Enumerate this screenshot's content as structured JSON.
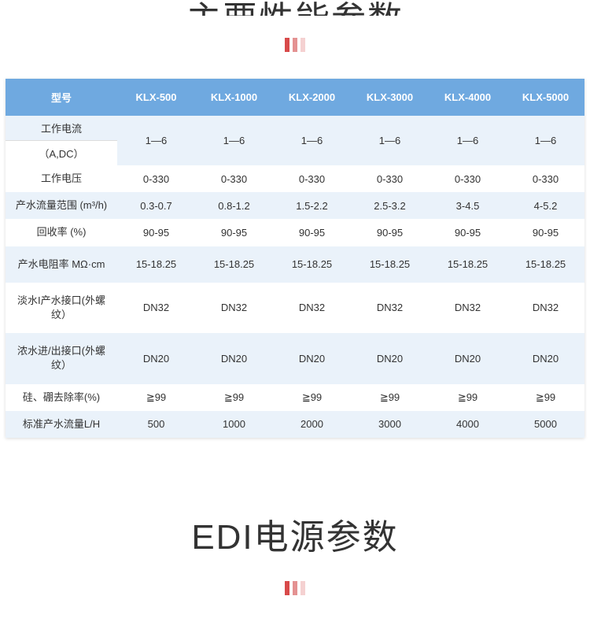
{
  "title1": "主要性能参数",
  "title2": "EDI电源参数",
  "decor_colors": [
    "#d84a4a",
    "#e49292",
    "#f5d1d1"
  ],
  "table": {
    "header_bg": "#6fa9e0",
    "header_fg": "#ffffff",
    "row_stripe": "#eaf2fa",
    "row_plain": "#ffffff",
    "border_color": "#dcdcdc",
    "columns_header": [
      "型号",
      "KLX-500",
      "KLX-1000",
      "KLX-2000",
      "KLX-3000",
      "KLX-4000",
      "KLX-5000"
    ],
    "rows": [
      {
        "label_top": "工作电流",
        "label_bottom": "（A,DC）",
        "split": true,
        "stripe": true,
        "cells": [
          "1—6",
          "1—6",
          "1—6",
          "1—6",
          "1—6",
          "1—6"
        ]
      },
      {
        "label": "工作电压",
        "stripe": false,
        "cells": [
          "0-330",
          "0-330",
          "0-330",
          "0-330",
          "0-330",
          "0-330"
        ]
      },
      {
        "label": "产水流量范围 (m³/h)",
        "stripe": true,
        "cells": [
          "0.3-0.7",
          "0.8-1.2",
          "1.5-2.2",
          "2.5-3.2",
          "3-4.5",
          "4-5.2"
        ]
      },
      {
        "label": "回收率 (%)",
        "stripe": false,
        "cells": [
          "90-95",
          "90-95",
          "90-95",
          "90-95",
          "90-95",
          "90-95"
        ]
      },
      {
        "label": "产水电阻率 MΩ·cm",
        "stripe": true,
        "tall": true,
        "cells": [
          "15-18.25",
          "15-18.25",
          "15-18.25",
          "15-18.25",
          "15-18.25",
          "15-18.25"
        ]
      },
      {
        "label": "淡水I产水接口(外螺纹）",
        "stripe": false,
        "tall": true,
        "cells": [
          "DN32",
          "DN32",
          "DN32",
          "DN32",
          "DN32",
          "DN32"
        ]
      },
      {
        "label": "浓水进/出接口(外螺纹）",
        "stripe": true,
        "tall": true,
        "cells": [
          "DN20",
          "DN20",
          "DN20",
          "DN20",
          "DN20",
          "DN20"
        ]
      },
      {
        "label": "硅、硼去除率(%)",
        "stripe": false,
        "cells": [
          "≧99",
          "≧99",
          "≧99",
          "≧99",
          "≧99",
          "≧99"
        ]
      },
      {
        "label": "标准产水流量L/H",
        "stripe": true,
        "cells": [
          "500",
          "1000",
          "2000",
          "3000",
          "4000",
          "5000"
        ]
      }
    ]
  }
}
